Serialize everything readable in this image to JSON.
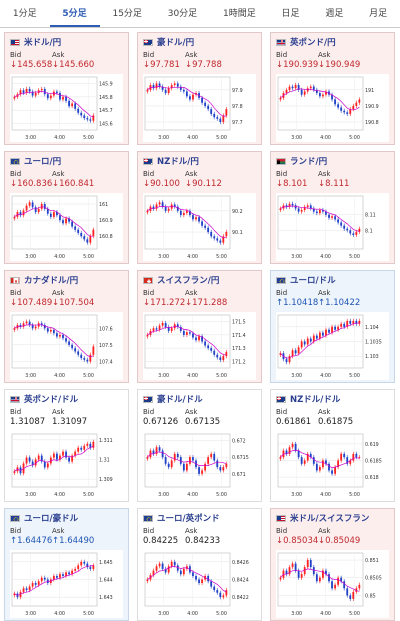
{
  "tabs": [
    {
      "label": "1分足",
      "active": false
    },
    {
      "label": "5分足",
      "active": true
    },
    {
      "label": "15分足",
      "active": false
    },
    {
      "label": "30分足",
      "active": false
    },
    {
      "label": "1時間足",
      "active": false
    },
    {
      "label": "日足",
      "active": false
    },
    {
      "label": "週足",
      "active": false
    },
    {
      "label": "月足",
      "active": false
    }
  ],
  "labels": {
    "bid": "Bid",
    "ask": "Ask"
  },
  "colors": {
    "up": "#1d55b4",
    "down": "#c0282d",
    "candle_up": "#ff2020",
    "candle_down": "#2040c8",
    "ma": "#cc00cc"
  },
  "cards": [
    {
      "pair": "米ドル/円",
      "flag": "us-flag-icon",
      "bg": "red",
      "dir": "down",
      "bid": "↓145.658",
      "ask": "↓145.660",
      "chart_data": {
        "type": "candlestick",
        "x_ticks": [
          "3:00",
          "4:00",
          "5:00"
        ],
        "y_ticks": [
          "145.9",
          "145.8",
          "145.7",
          "145.6"
        ],
        "ylim": [
          145.55,
          145.95
        ],
        "close": [
          145.8,
          145.82,
          145.85,
          145.83,
          145.86,
          145.84,
          145.81,
          145.83,
          145.85,
          145.86,
          145.82,
          145.79,
          145.81,
          145.84,
          145.83,
          145.78,
          145.8,
          145.77,
          145.73,
          145.75,
          145.71,
          145.68,
          145.66,
          145.64,
          145.63,
          145.62,
          145.66
        ]
      }
    },
    {
      "pair": "豪ドル/円",
      "flag": "au-flag-icon",
      "bg": "red",
      "dir": "down",
      "bid": "↓97.781",
      "ask": "↓97.788",
      "chart_data": {
        "type": "candlestick",
        "x_ticks": [
          "3:00",
          "4:00",
          "5:00"
        ],
        "y_ticks": [
          "97.9",
          "97.8",
          "97.7"
        ],
        "ylim": [
          97.65,
          97.98
        ],
        "close": [
          97.9,
          97.93,
          97.91,
          97.94,
          97.92,
          97.9,
          97.88,
          97.91,
          97.93,
          97.94,
          97.92,
          97.9,
          97.89,
          97.86,
          97.84,
          97.87,
          97.88,
          97.85,
          97.82,
          97.8,
          97.78,
          97.75,
          97.73,
          97.72,
          97.7,
          97.74,
          97.78
        ]
      }
    },
    {
      "pair": "英ポンド/円",
      "flag": "uk-flag-icon",
      "bg": "red",
      "dir": "down",
      "bid": "↓190.939",
      "ask": "↓190.949",
      "chart_data": {
        "type": "candlestick",
        "x_ticks": [
          "3:00",
          "4:00",
          "5:00"
        ],
        "y_ticks": [
          "191",
          "190.9",
          "190.8"
        ],
        "ylim": [
          190.75,
          191.08
        ],
        "close": [
          190.95,
          190.98,
          191.0,
          191.02,
          191.01,
          191.03,
          191.0,
          190.97,
          190.99,
          191.01,
          191.02,
          191.0,
          190.98,
          190.96,
          190.97,
          190.99,
          190.97,
          190.94,
          190.91,
          190.89,
          190.87,
          190.86,
          190.85,
          190.88,
          190.9,
          190.92,
          190.94
        ]
      }
    },
    {
      "pair": "ユーロ/円",
      "flag": "eu-flag-icon",
      "bg": "red",
      "dir": "down",
      "bid": "↓160.836",
      "ask": "↓160.841",
      "chart_data": {
        "type": "candlestick",
        "x_ticks": [
          "3:00",
          "4:00",
          "5:00"
        ],
        "y_ticks": [
          "161",
          "160.9",
          "160.8"
        ],
        "ylim": [
          160.72,
          161.05
        ],
        "close": [
          160.92,
          160.95,
          160.93,
          160.96,
          160.99,
          161.01,
          160.98,
          160.95,
          160.97,
          161.0,
          160.97,
          160.94,
          160.92,
          160.95,
          160.93,
          160.9,
          160.88,
          160.91,
          160.89,
          160.86,
          160.84,
          160.82,
          160.8,
          160.78,
          160.76,
          160.8,
          160.84
        ]
      }
    },
    {
      "pair": "NZドル/円",
      "flag": "nz-flag-icon",
      "bg": "red",
      "dir": "down",
      "bid": "↓90.100",
      "ask": "↓90.112",
      "chart_data": {
        "type": "candlestick",
        "x_ticks": [
          "3:00",
          "4:00",
          "5:00"
        ],
        "y_ticks": [
          "90.2",
          "90.1"
        ],
        "ylim": [
          90.02,
          90.27
        ],
        "close": [
          90.2,
          90.22,
          90.21,
          90.23,
          90.24,
          90.22,
          90.2,
          90.21,
          90.23,
          90.22,
          90.2,
          90.18,
          90.19,
          90.2,
          90.18,
          90.16,
          90.17,
          90.15,
          90.13,
          90.12,
          90.1,
          90.08,
          90.07,
          90.06,
          90.05,
          90.08,
          90.1
        ]
      }
    },
    {
      "pair": "ランド/円",
      "flag": "za-flag-icon",
      "bg": "red",
      "dir": "down",
      "bid": "↓8.101",
      "ask": "↓8.111",
      "chart_data": {
        "type": "candlestick",
        "x_ticks": [
          "3:00",
          "4:00",
          "5:00"
        ],
        "y_ticks": [
          "8.11",
          "8.1"
        ],
        "ylim": [
          8.088,
          8.122
        ],
        "close": [
          8.114,
          8.116,
          8.115,
          8.117,
          8.116,
          8.114,
          8.112,
          8.113,
          8.115,
          8.116,
          8.114,
          8.112,
          8.111,
          8.113,
          8.112,
          8.11,
          8.108,
          8.109,
          8.107,
          8.105,
          8.103,
          8.101,
          8.1,
          8.098,
          8.097,
          8.099,
          8.101
        ]
      }
    },
    {
      "pair": "カナダドル/円",
      "flag": "ca-flag-icon",
      "bg": "red",
      "dir": "down",
      "bid": "↓107.489",
      "ask": "↓107.504",
      "chart_data": {
        "type": "candlestick",
        "x_ticks": [
          "3:00",
          "4:00",
          "5:00"
        ],
        "y_ticks": [
          "107.6",
          "107.5",
          "107.4"
        ],
        "ylim": [
          107.36,
          107.68
        ],
        "close": [
          107.6,
          107.62,
          107.61,
          107.63,
          107.64,
          107.62,
          107.6,
          107.61,
          107.63,
          107.62,
          107.6,
          107.58,
          107.59,
          107.57,
          107.55,
          107.56,
          107.54,
          107.52,
          107.5,
          107.48,
          107.46,
          107.44,
          107.42,
          107.41,
          107.4,
          107.44,
          107.49
        ]
      }
    },
    {
      "pair": "スイスフラン/円",
      "flag": "ch-flag-icon",
      "bg": "red",
      "dir": "down",
      "bid": "↓171.272",
      "ask": "↓171.288",
      "chart_data": {
        "type": "candlestick",
        "x_ticks": [
          "3:00",
          "4:00",
          "5:00"
        ],
        "y_ticks": [
          "171.5",
          "171.4",
          "171.3",
          "171.2"
        ],
        "ylim": [
          171.15,
          171.55
        ],
        "close": [
          171.4,
          171.43,
          171.45,
          171.44,
          171.47,
          171.49,
          171.46,
          171.43,
          171.45,
          171.48,
          171.46,
          171.43,
          171.4,
          171.42,
          171.41,
          171.38,
          171.36,
          171.39,
          171.35,
          171.32,
          171.3,
          171.28,
          171.25,
          171.23,
          171.21,
          171.24,
          171.27
        ]
      }
    },
    {
      "pair": "ユーロ/ドル",
      "flag": "eu-flag-icon",
      "bg": "blue",
      "dir": "up",
      "bid": "↑1.10418",
      "ask": "↑1.10422",
      "chart_data": {
        "type": "candlestick",
        "x_ticks": [
          "3:00",
          "4:00",
          "5:00"
        ],
        "y_ticks": [
          "1.104",
          "1.1035",
          "1.103"
        ],
        "ylim": [
          1.1026,
          1.1044
        ],
        "close": [
          1.1031,
          1.1029,
          1.1028,
          1.103,
          1.1032,
          1.1031,
          1.1033,
          1.1035,
          1.1034,
          1.1036,
          1.1035,
          1.1037,
          1.1036,
          1.1038,
          1.1037,
          1.1039,
          1.1038,
          1.104,
          1.1039,
          1.104,
          1.1041,
          1.104,
          1.1042,
          1.1041,
          1.1042,
          1.1041,
          1.1042
        ]
      }
    },
    {
      "pair": "英ポンド/ドル",
      "flag": "uk-flag-icon",
      "bg": "white",
      "dir": "flat",
      "bid": "1.31087",
      "ask": "1.31097",
      "chart_data": {
        "type": "candlestick",
        "x_ticks": [
          "3:00",
          "4:00",
          "5:00"
        ],
        "y_ticks": [
          "1.311",
          "1.31",
          "1.309"
        ],
        "ylim": [
          1.3086,
          1.3113
        ],
        "close": [
          1.3094,
          1.3096,
          1.3093,
          1.3098,
          1.3101,
          1.3099,
          1.3097,
          1.31,
          1.3102,
          1.3099,
          1.3096,
          1.3098,
          1.3101,
          1.3103,
          1.31,
          1.3102,
          1.3104,
          1.3101,
          1.3099,
          1.3102,
          1.3104,
          1.3106,
          1.3105,
          1.3107,
          1.3108,
          1.3106,
          1.3109
        ]
      }
    },
    {
      "pair": "豪ドル/ドル",
      "flag": "au-flag-icon",
      "bg": "white",
      "dir": "flat",
      "bid": "0.67126",
      "ask": "0.67135",
      "chart_data": {
        "type": "candlestick",
        "x_ticks": [
          "3:00",
          "4:00",
          "5:00"
        ],
        "y_ticks": [
          "0.672",
          "0.6715",
          "0.671"
        ],
        "ylim": [
          0.6706,
          0.6722
        ],
        "close": [
          0.6715,
          0.6717,
          0.6716,
          0.6718,
          0.6717,
          0.6715,
          0.6713,
          0.6712,
          0.6714,
          0.6716,
          0.6715,
          0.6713,
          0.6711,
          0.6713,
          0.6715,
          0.6714,
          0.6712,
          0.671,
          0.6711,
          0.6713,
          0.6715,
          0.6716,
          0.6714,
          0.6712,
          0.6711,
          0.6712,
          0.6713
        ]
      }
    },
    {
      "pair": "NZドル/ドル",
      "flag": "nz-flag-icon",
      "bg": "white",
      "dir": "flat",
      "bid": "0.61861",
      "ask": "0.61875",
      "chart_data": {
        "type": "candlestick",
        "x_ticks": [
          "3:00",
          "4:00",
          "5:00"
        ],
        "y_ticks": [
          "0.619",
          "0.6185",
          "0.618"
        ],
        "ylim": [
          0.6177,
          0.6193
        ],
        "close": [
          0.6186,
          0.6188,
          0.6187,
          0.6189,
          0.619,
          0.6188,
          0.6186,
          0.6184,
          0.6185,
          0.6187,
          0.6186,
          0.6184,
          0.6182,
          0.6183,
          0.6185,
          0.6184,
          0.6182,
          0.6181,
          0.6183,
          0.6185,
          0.6187,
          0.6186,
          0.6184,
          0.6185,
          0.6187,
          0.6186,
          0.6186
        ]
      }
    },
    {
      "pair": "ユーロ/豪ドル",
      "flag": "eu-flag-icon",
      "bg": "blue",
      "dir": "up",
      "bid": "↑1.64476",
      "ask": "↑1.64490",
      "chart_data": {
        "type": "candlestick",
        "x_ticks": [
          "3:00",
          "4:00",
          "5:00"
        ],
        "y_ticks": [
          "1.645",
          "1.644",
          "1.643"
        ],
        "ylim": [
          1.6425,
          1.6455
        ],
        "close": [
          1.6432,
          1.643,
          1.6433,
          1.6435,
          1.6434,
          1.6436,
          1.6438,
          1.6437,
          1.6439,
          1.6441,
          1.644,
          1.6438,
          1.644,
          1.6442,
          1.6441,
          1.6443,
          1.6442,
          1.6444,
          1.6443,
          1.6445,
          1.6446,
          1.6448,
          1.645,
          1.6449,
          1.6447,
          1.6446,
          1.6448
        ]
      }
    },
    {
      "pair": "ユーロ/英ポンド",
      "flag": "eu-flag-icon",
      "bg": "white",
      "dir": "flat",
      "bid": "0.84225",
      "ask": "0.84233",
      "chart_data": {
        "type": "candlestick",
        "x_ticks": [
          "3:00",
          "4:00",
          "5:00"
        ],
        "y_ticks": [
          "0.8426",
          "0.8424",
          "0.8422"
        ],
        "ylim": [
          0.8421,
          0.8427
        ],
        "close": [
          0.8424,
          0.84245,
          0.8425,
          0.84255,
          0.84258,
          0.84252,
          0.84248,
          0.84255,
          0.8426,
          0.84256,
          0.8425,
          0.84246,
          0.84252,
          0.84255,
          0.84248,
          0.84244,
          0.8424,
          0.84236,
          0.8424,
          0.84244,
          0.84238,
          0.84232,
          0.84228,
          0.84225,
          0.8422,
          0.84222,
          0.84228
        ]
      }
    },
    {
      "pair": "米ドル/スイスフラン",
      "flag": "us-flag-icon",
      "bg": "red",
      "dir": "down",
      "bid": "↓0.85034",
      "ask": "↓0.85049",
      "chart_data": {
        "type": "candlestick",
        "x_ticks": [
          "3:00",
          "4:00",
          "5:00"
        ],
        "y_ticks": [
          "0.851",
          "0.8505",
          "0.85"
        ],
        "ylim": [
          0.8497,
          0.8512
        ],
        "close": [
          0.8505,
          0.8507,
          0.8506,
          0.8508,
          0.8509,
          0.8507,
          0.8505,
          0.8506,
          0.8508,
          0.851,
          0.8508,
          0.8506,
          0.8504,
          0.8505,
          0.8507,
          0.8506,
          0.8504,
          0.8502,
          0.8503,
          0.8505,
          0.8504,
          0.8502,
          0.85,
          0.8499,
          0.8501,
          0.8502,
          0.8503
        ]
      }
    }
  ]
}
